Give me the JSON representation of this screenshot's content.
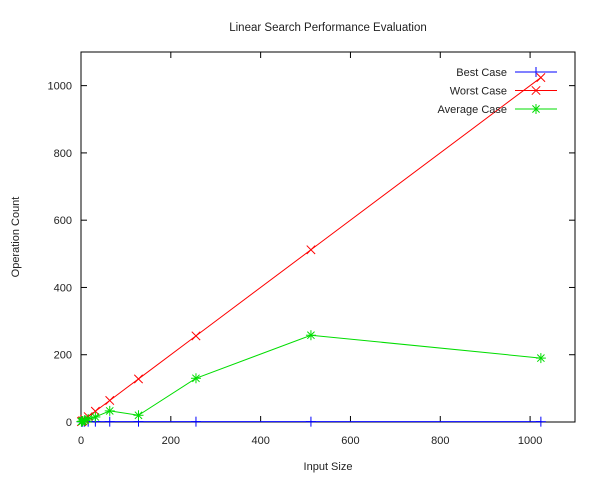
{
  "chart_data": {
    "type": "line",
    "title": "Linear Search Performance Evaluation",
    "xlabel": "Input Size",
    "ylabel": "Operation Count",
    "xlim": [
      0,
      1100
    ],
    "ylim": [
      0,
      1100
    ],
    "xticks": [
      0,
      200,
      400,
      600,
      800,
      1000
    ],
    "yticks": [
      0,
      200,
      400,
      600,
      800,
      1000
    ],
    "grid": false,
    "legend_position": "top-right",
    "x": [
      1,
      2,
      4,
      8,
      16,
      32,
      64,
      128,
      256,
      512,
      1024
    ],
    "series": [
      {
        "name": "Best Case",
        "color": "#0000ff",
        "marker": "plus",
        "values": [
          1,
          1,
          1,
          1,
          1,
          1,
          1,
          1,
          1,
          1,
          1
        ]
      },
      {
        "name": "Worst Case",
        "color": "#ff0000",
        "marker": "x",
        "values": [
          1,
          2,
          4,
          8,
          16,
          32,
          64,
          128,
          256,
          512,
          1024
        ]
      },
      {
        "name": "Average Case",
        "color": "#00dd00",
        "marker": "star",
        "values": [
          1,
          2,
          3,
          5,
          9,
          15,
          33,
          20,
          130,
          258,
          190
        ]
      }
    ]
  }
}
